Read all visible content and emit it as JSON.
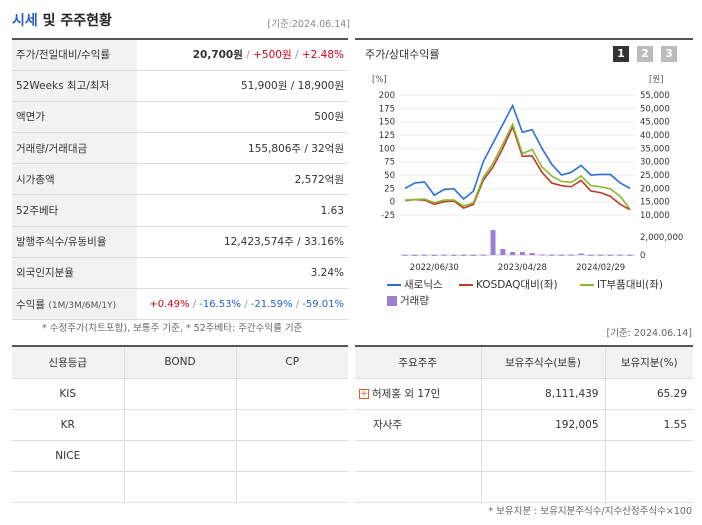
{
  "header": {
    "title_accent": "시세",
    "title_rest": " 및 주주현황",
    "date": "[기준:2024.06.14]"
  },
  "summary": [
    {
      "label": "주가/전일대비/수익률"
    },
    {
      "label": "52Weeks 최고/최저",
      "value": "51,900원 / 18,900원"
    },
    {
      "label": "액면가",
      "value": "500원"
    },
    {
      "label": "거래량/거래대금",
      "value": "155,806주 / 32억원"
    },
    {
      "label": "시가총액",
      "value": "2,572억원"
    },
    {
      "label": "52주베타",
      "value": "1.63"
    },
    {
      "label": "발행주식수/유동비율",
      "value": "12,423,574주 / 33.16%"
    },
    {
      "label": "외국인지분율",
      "value": "3.24%"
    },
    {
      "label": "수익률",
      "label_sub": "(1M/3M/6M/1Y)"
    }
  ],
  "price": {
    "price": "20,700원",
    "sep": " / ",
    "change": "+500원",
    "rate": "+2.48%"
  },
  "returns": {
    "m1": "+0.49%",
    "m3": "-16.53%",
    "m6": "-21.59%",
    "y1": "-59.01%",
    "sep": " / "
  },
  "note_left": "* 수정주가(차트포함), 보통주 기준, * 52주베타: 주간수익률 기준",
  "note_right_date": "[기준: 2024.06.14]",
  "chart": {
    "title": "주가/상대수익률",
    "tabs": [
      "1",
      "2",
      "3"
    ],
    "colors": {
      "stock": "#2a6fdb",
      "kosdaq": "#c0392b",
      "it": "#8cb82b",
      "volume": "#9c7fd6"
    },
    "legend": {
      "stock": "새로닉스",
      "kosdaq": "KOSDAQ대비(좌)",
      "it": "IT부품대비(좌)",
      "volume": "거래량"
    }
  },
  "chart_data": {
    "type": "line",
    "title": "",
    "left_axis_unit": "[%]",
    "right_axis_unit": "[원]",
    "left_ticks": [
      "200",
      "175",
      "150",
      "125",
      "100",
      "75",
      "50",
      "25",
      "0",
      "-25"
    ],
    "right_ticks": [
      "55,000",
      "50,000",
      "45,000",
      "40,000",
      "35,000",
      "30,000",
      "25,000",
      "20,000",
      "15,000",
      "10,000"
    ],
    "volume_ticks": [
      "2,000,000",
      "0"
    ],
    "x_ticks": [
      "2022/06/30",
      "2023/04/28",
      "2024/02/29"
    ],
    "ylim_left": [
      -25,
      200
    ],
    "ylim_volume": [
      0,
      2500000
    ],
    "series": [
      {
        "name": "새로닉스",
        "values": [
          25,
          35,
          37,
          12,
          23,
          24,
          5,
          20,
          75,
          110,
          145,
          180,
          130,
          135,
          100,
          70,
          50,
          55,
          68,
          50,
          51,
          51,
          35,
          25
        ]
      },
      {
        "name": "KOSDAQ대비(좌)",
        "values": [
          2,
          4,
          3,
          -5,
          0,
          1,
          -12,
          -5,
          40,
          65,
          100,
          140,
          85,
          86,
          55,
          35,
          30,
          28,
          40,
          20,
          17,
          10,
          -5,
          -15
        ]
      },
      {
        "name": "IT부품대비(좌)",
        "values": [
          3,
          4,
          5,
          -2,
          3,
          3,
          -8,
          -2,
          45,
          72,
          108,
          145,
          90,
          98,
          65,
          48,
          38,
          36,
          48,
          30,
          28,
          24,
          10,
          -14
        ]
      },
      {
        "name": "거래량",
        "values": [
          20000,
          10000,
          20000,
          10000,
          30000,
          10000,
          20000,
          10000,
          30000,
          2500000,
          600000,
          300000,
          300000,
          200000,
          50000,
          20000,
          20000,
          30000,
          150000,
          20000,
          20000,
          20000,
          30000,
          20000
        ]
      }
    ]
  },
  "credit": {
    "headers": [
      "신용등급",
      "BOND",
      "CP"
    ],
    "rows": [
      [
        "KIS",
        "",
        ""
      ],
      [
        "KR",
        "",
        ""
      ],
      [
        "NICE",
        "",
        ""
      ],
      [
        "",
        "",
        ""
      ]
    ]
  },
  "holders": {
    "headers": [
      "주요주주",
      "보유주식수(보통)",
      "보유지분(%)"
    ],
    "rows": [
      {
        "name": "허제홍 외 17인",
        "shares": "8,111,439",
        "pct": "65.29",
        "expand": "+"
      },
      {
        "name": "자사주",
        "shares": "192,005",
        "pct": "1.55"
      },
      {
        "name": "",
        "shares": "",
        "pct": ""
      },
      {
        "name": "",
        "shares": "",
        "pct": ""
      }
    ]
  },
  "note_bottom": "* 보유지분 : 보유지분주식수/지수산정주식수×100"
}
